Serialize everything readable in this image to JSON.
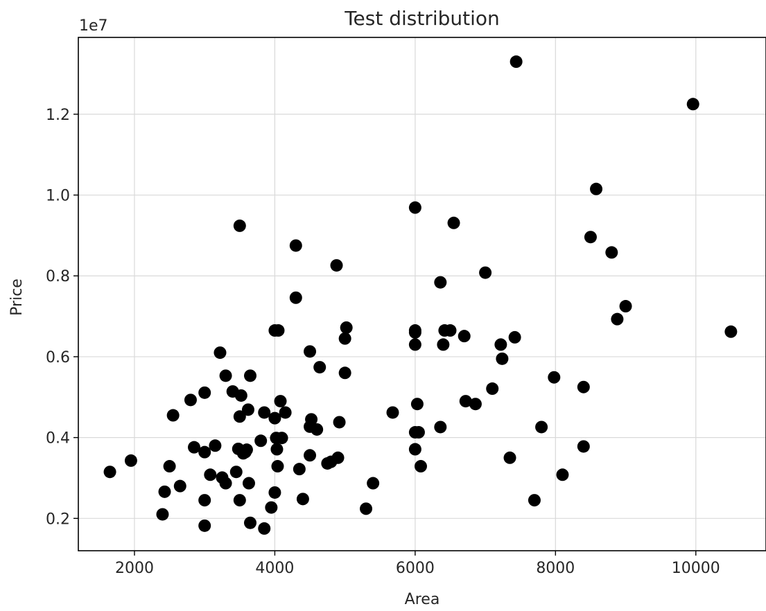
{
  "chart_data": {
    "type": "scatter",
    "title": "Test distribution",
    "xlabel": "Area",
    "ylabel": "Price",
    "y_offset_label": "1e7",
    "xlim": [
      1200,
      11000
    ],
    "ylim": [
      1200000,
      13900000
    ],
    "xticks": [
      2000,
      4000,
      6000,
      8000,
      10000
    ],
    "xtick_labels": [
      "2000",
      "4000",
      "6000",
      "8000",
      "10000"
    ],
    "yticks": [
      2000000,
      4000000,
      6000000,
      8000000,
      10000000,
      12000000
    ],
    "ytick_labels": [
      "0.2",
      "0.4",
      "0.6",
      "0.8",
      "1.0",
      "1.2"
    ],
    "grid": true,
    "marker_color": "#000000",
    "points": [
      [
        1650,
        3150000
      ],
      [
        1950,
        3430000
      ],
      [
        2400,
        2100000
      ],
      [
        2430,
        2660000
      ],
      [
        2500,
        3290000
      ],
      [
        2550,
        4550000
      ],
      [
        2650,
        2800000
      ],
      [
        2800,
        4930000
      ],
      [
        2850,
        3760000
      ],
      [
        3000,
        1820000
      ],
      [
        3000,
        2450000
      ],
      [
        3000,
        3640000
      ],
      [
        3000,
        5110000
      ],
      [
        3080,
        3080000
      ],
      [
        3150,
        3800000
      ],
      [
        3220,
        6100000
      ],
      [
        3250,
        3010000
      ],
      [
        3300,
        2870000
      ],
      [
        3300,
        5530000
      ],
      [
        3400,
        5140000
      ],
      [
        3450,
        3150000
      ],
      [
        3480,
        3720000
      ],
      [
        3500,
        9240000
      ],
      [
        3500,
        2450000
      ],
      [
        3500,
        4520000
      ],
      [
        3520,
        5040000
      ],
      [
        3550,
        3610000
      ],
      [
        3580,
        3640000
      ],
      [
        3600,
        3700000
      ],
      [
        3620,
        4690000
      ],
      [
        3630,
        2870000
      ],
      [
        3650,
        5530000
      ],
      [
        3650,
        1890000
      ],
      [
        3800,
        3920000
      ],
      [
        3850,
        4620000
      ],
      [
        3850,
        1750000
      ],
      [
        3950,
        2270000
      ],
      [
        4000,
        6650000
      ],
      [
        4000,
        4480000
      ],
      [
        4000,
        2640000
      ],
      [
        4020,
        3990000
      ],
      [
        4030,
        3710000
      ],
      [
        4040,
        3290000
      ],
      [
        4050,
        6650000
      ],
      [
        4080,
        4900000
      ],
      [
        4100,
        3990000
      ],
      [
        4150,
        4620000
      ],
      [
        4300,
        8750000
      ],
      [
        4300,
        7460000
      ],
      [
        4350,
        3220000
      ],
      [
        4400,
        2480000
      ],
      [
        4500,
        6130000
      ],
      [
        4500,
        4270000
      ],
      [
        4500,
        3560000
      ],
      [
        4520,
        4450000
      ],
      [
        4600,
        4200000
      ],
      [
        4640,
        5740000
      ],
      [
        4750,
        3360000
      ],
      [
        4800,
        3400000
      ],
      [
        4880,
        8260000
      ],
      [
        4900,
        3500000
      ],
      [
        4920,
        4380000
      ],
      [
        5000,
        6450000
      ],
      [
        5000,
        5600000
      ],
      [
        5020,
        6720000
      ],
      [
        5300,
        2240000
      ],
      [
        5400,
        2870000
      ],
      [
        5680,
        4620000
      ],
      [
        6000,
        9690000
      ],
      [
        6000,
        6650000
      ],
      [
        6000,
        6600000
      ],
      [
        6000,
        6300000
      ],
      [
        6000,
        4130000
      ],
      [
        6000,
        3710000
      ],
      [
        6030,
        4830000
      ],
      [
        6050,
        4130000
      ],
      [
        6080,
        3290000
      ],
      [
        6360,
        7840000
      ],
      [
        6360,
        4260000
      ],
      [
        6400,
        6300000
      ],
      [
        6420,
        6650000
      ],
      [
        6500,
        6650000
      ],
      [
        6550,
        9310000
      ],
      [
        6700,
        6510000
      ],
      [
        6720,
        4900000
      ],
      [
        6860,
        4830000
      ],
      [
        7000,
        8080000
      ],
      [
        7100,
        5210000
      ],
      [
        7220,
        6300000
      ],
      [
        7240,
        5950000
      ],
      [
        7350,
        3500000
      ],
      [
        7420,
        6480000
      ],
      [
        7440,
        13300000
      ],
      [
        7700,
        2450000
      ],
      [
        7800,
        4260000
      ],
      [
        7980,
        5490000
      ],
      [
        8100,
        3080000
      ],
      [
        8400,
        5250000
      ],
      [
        8400,
        3780000
      ],
      [
        8500,
        8960000
      ],
      [
        8580,
        10150000
      ],
      [
        8800,
        8580000
      ],
      [
        8880,
        6930000
      ],
      [
        9000,
        7250000
      ],
      [
        9960,
        12250000
      ],
      [
        10500,
        6620000
      ]
    ]
  }
}
